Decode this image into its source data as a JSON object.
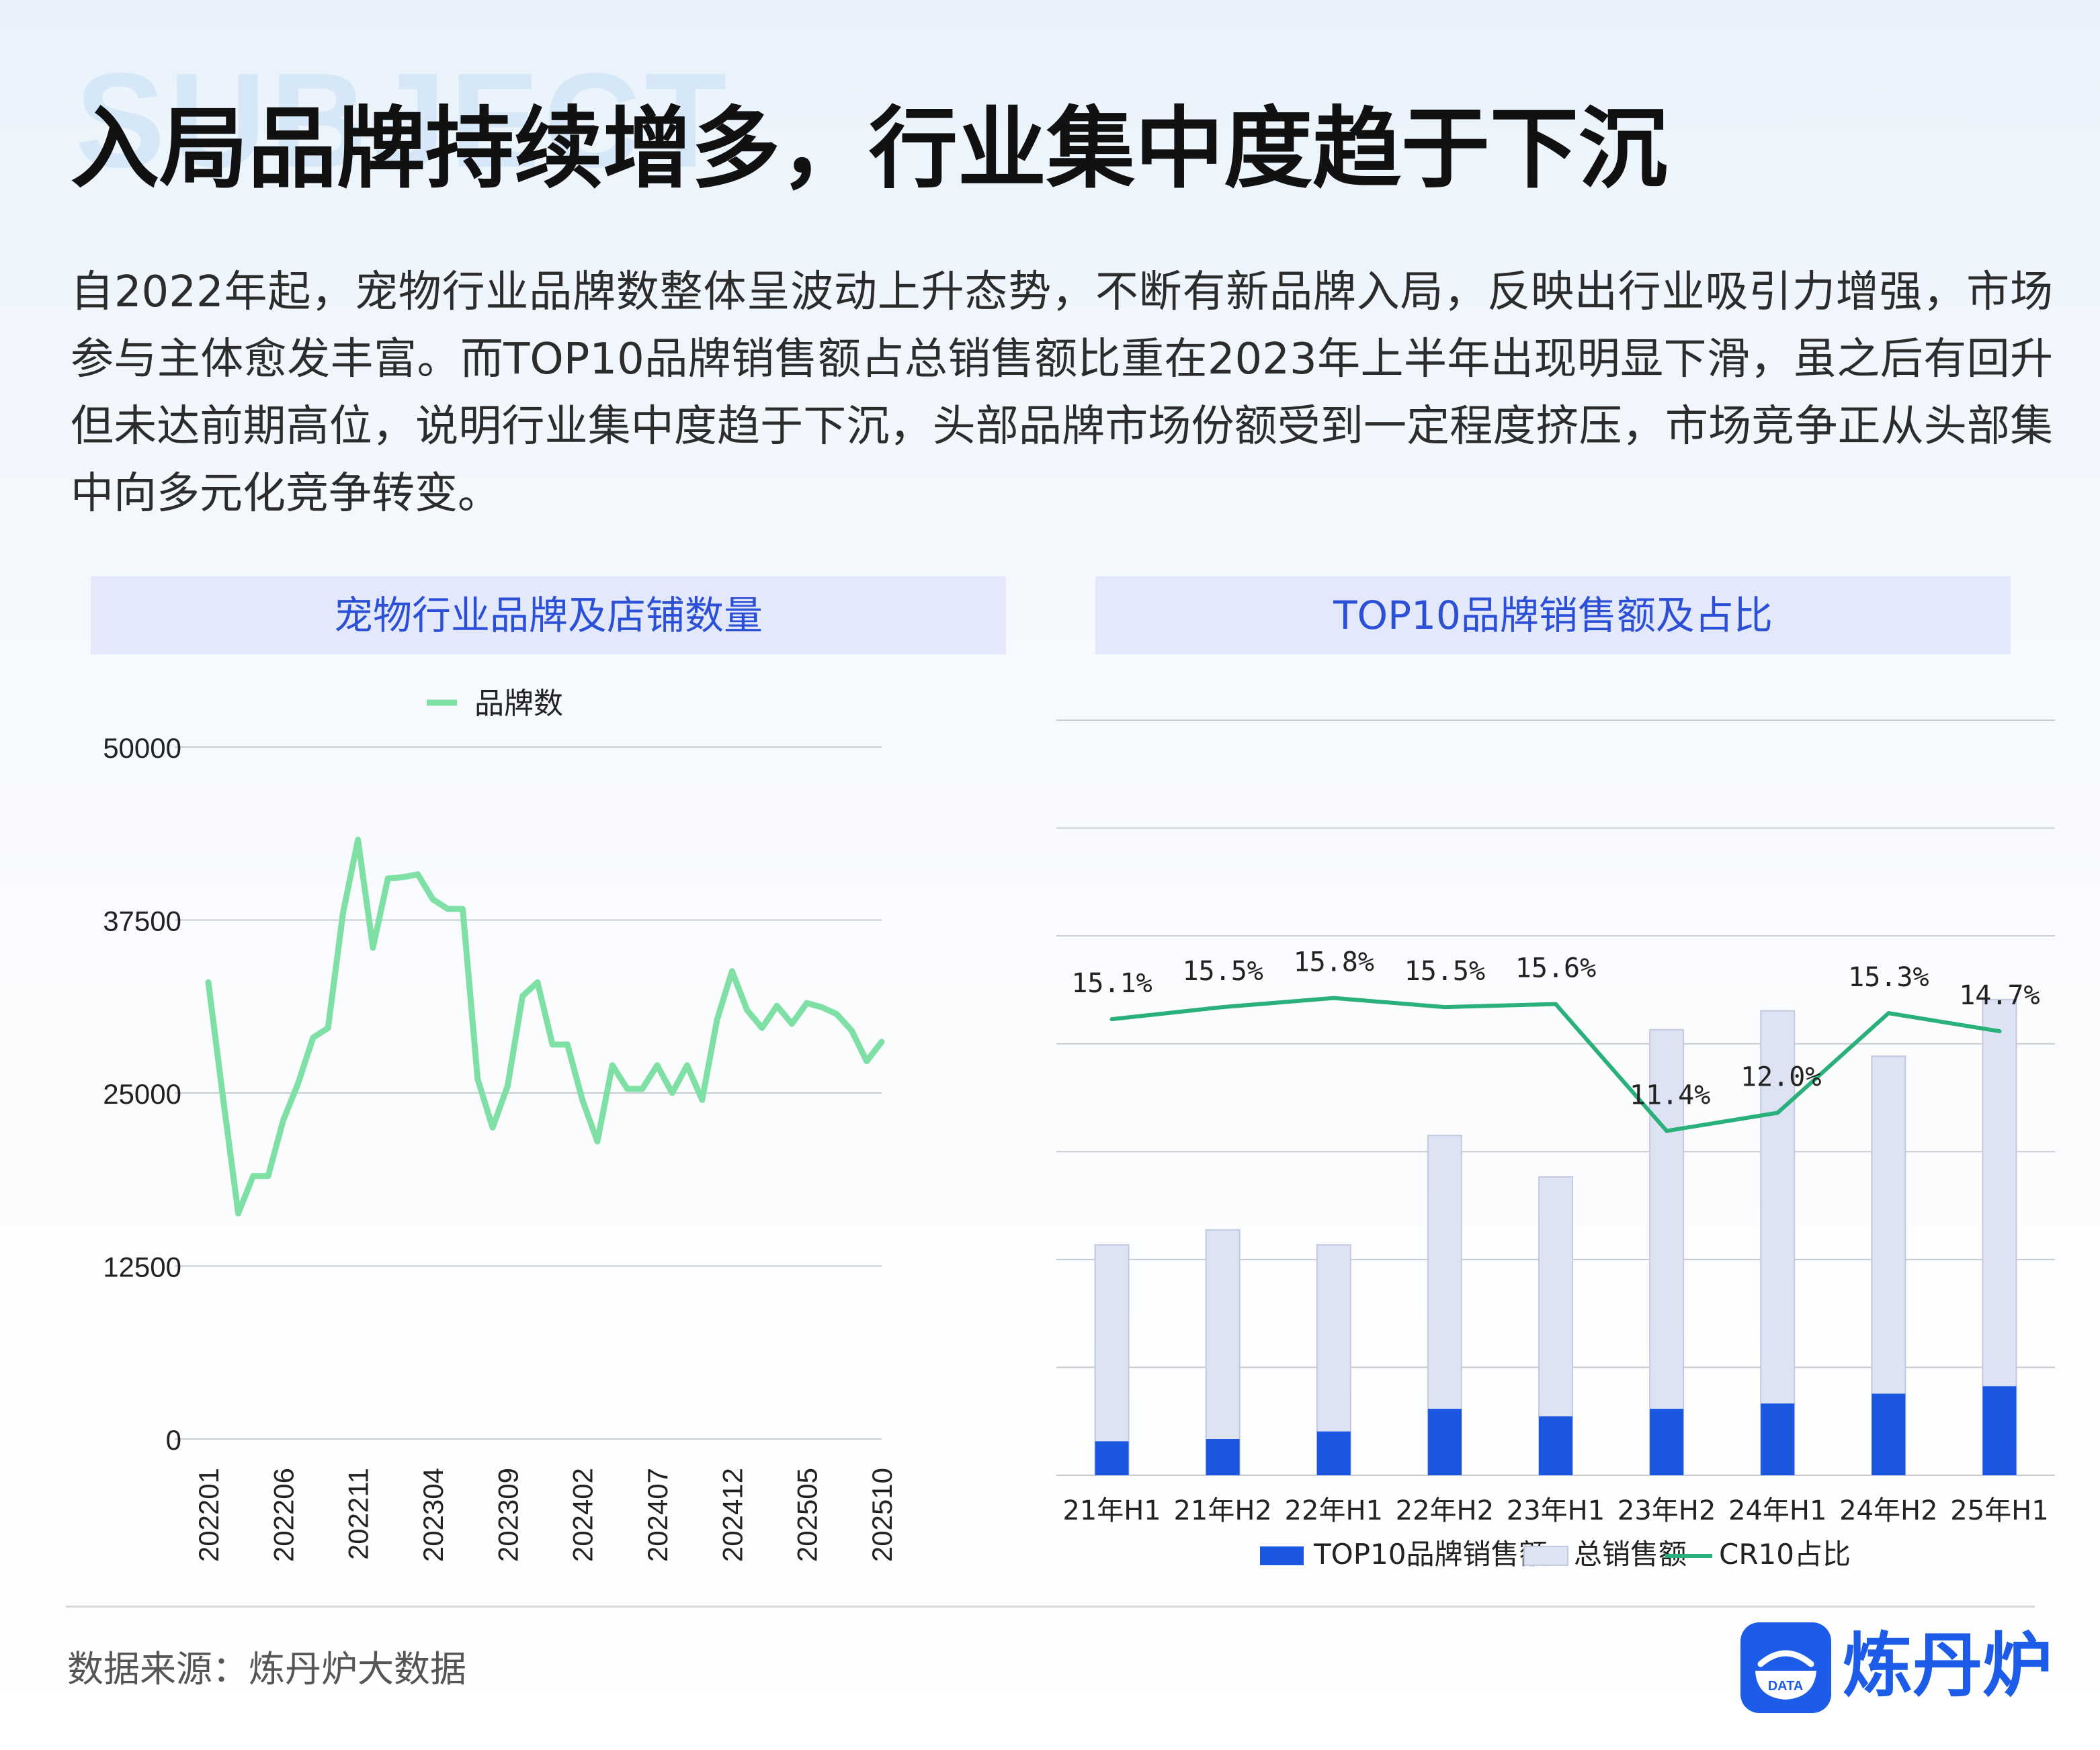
{
  "page": {
    "watermark": "SUBJECT",
    "headline": "入局品牌持续增多，行业集中度趋于下沉",
    "intro": "自2022年起，宠物行业品牌数整体呈波动上升态势，不断有新品牌入局，反映出行业吸引力增强，市场参与主体愈发丰富。而TOP10品牌销售额占总销售额比重在2023年上半年出现明显下滑，虽之后有回升但未达前期高位，说明行业集中度趋于下沉，头部品牌市场份额受到一定程度挤压，市场竞争正从头部集中向多元化竞争转变。",
    "source": "数据来源：炼丹炉大数据",
    "logo_text": "炼丹炉",
    "logo_badge": "DATA"
  },
  "chart_data": [
    {
      "type": "line",
      "title": "宠物行业品牌及店铺数量",
      "legend_position": "top",
      "grid": true,
      "ylim": [
        0,
        50000
      ],
      "yticks": [
        0,
        12500,
        25000,
        37500,
        50000
      ],
      "xticks": [
        "202201",
        "202206",
        "202211",
        "202304",
        "202309",
        "202402",
        "202407",
        "202412",
        "202505",
        "202510"
      ],
      "x": [
        "202201",
        "202202",
        "202203",
        "202204",
        "202205",
        "202206",
        "202207",
        "202208",
        "202209",
        "202210",
        "202211",
        "202212",
        "202301",
        "202302",
        "202303",
        "202304",
        "202305",
        "202306",
        "202307",
        "202308",
        "202309",
        "202310",
        "202311",
        "202312",
        "202401",
        "202402",
        "202403",
        "202404",
        "202405",
        "202406",
        "202407",
        "202408",
        "202409",
        "202410",
        "202411",
        "202412",
        "202501",
        "202502",
        "202503",
        "202504",
        "202505",
        "202506",
        "202507",
        "202508",
        "202509",
        "202510"
      ],
      "series": [
        {
          "name": "品牌数",
          "color": "#7fe0a6",
          "values": [
            33000,
            24500,
            16300,
            19000,
            19000,
            23000,
            25700,
            29000,
            29700,
            38000,
            43300,
            35500,
            40500,
            40600,
            40800,
            39000,
            38300,
            38300,
            26000,
            22500,
            25500,
            32000,
            33000,
            28500,
            28500,
            24500,
            21500,
            27000,
            25300,
            25300,
            27000,
            25000,
            27000,
            24500,
            30300,
            33800,
            31000,
            29700,
            31300,
            30000,
            31500,
            31200,
            30700,
            29500,
            27300,
            28700
          ]
        }
      ]
    },
    {
      "type": "bar",
      "title": "TOP10品牌销售额及占比",
      "legend_position": "bottom",
      "grid": true,
      "categories": [
        "21年H1",
        "21年H2",
        "22年H1",
        "22年H2",
        "23年H1",
        "23年H2",
        "24年H1",
        "24年H2",
        "25年H1"
      ],
      "bar_ylim": [
        0,
        100
      ],
      "line_ylim": [
        0,
        25
      ],
      "series": [
        {
          "name": "TOP10品牌销售额",
          "type": "bar",
          "color": "#1a56e0",
          "values": [
            4.5,
            4.8,
            5.8,
            8.8,
            7.8,
            8.8,
            9.5,
            10.8,
            11.8
          ]
        },
        {
          "name": "总销售额",
          "type": "bar",
          "color": "#dde3f3",
          "values": [
            30.5,
            32.5,
            30.5,
            45,
            39.5,
            59,
            61.5,
            55.5,
            63
          ]
        },
        {
          "name": "CR10占比",
          "type": "line",
          "color": "#2ab07a",
          "values": [
            15.1,
            15.5,
            15.8,
            15.5,
            15.6,
            11.4,
            12.0,
            15.3,
            14.7
          ],
          "labels": [
            "15.1%",
            "15.5%",
            "15.8%",
            "15.5%",
            "15.6%",
            "11.4%",
            "12.0%",
            "15.3%",
            "14.7%"
          ]
        }
      ]
    }
  ]
}
